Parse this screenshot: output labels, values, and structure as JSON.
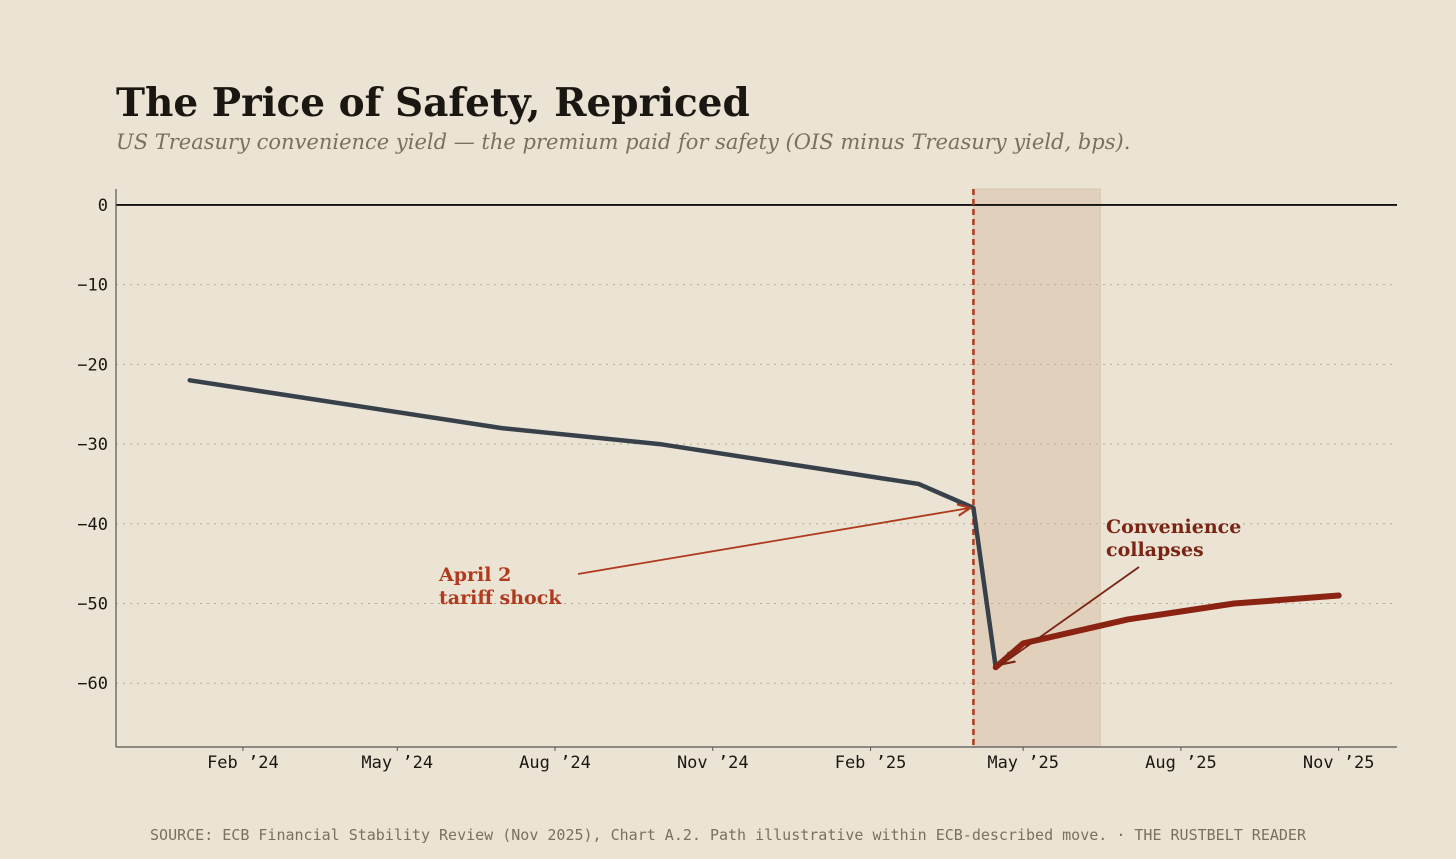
{
  "chart_data": {
    "type": "line",
    "title": "The Price of Safety, Repriced",
    "subtitle": "US Treasury convenience yield — the premium paid for safety (OIS minus Treasury yield, bps).",
    "x": [
      "2024-01-01",
      "2024-07-01",
      "2024-10-01",
      "2025-03-01",
      "2025-04-02",
      "2025-04-15",
      "2025-05-01",
      "2025-07-01",
      "2025-09-01",
      "2025-11-01"
    ],
    "series": [
      {
        "color": "#38414a",
        "values": [
          -22,
          -28,
          -30,
          -35,
          -38,
          -58,
          null,
          null,
          null,
          null
        ]
      },
      {
        "color": "#8b2312",
        "values": [
          null,
          null,
          null,
          null,
          null,
          -58,
          -55,
          -52,
          -50,
          -49
        ]
      }
    ],
    "xlim": [
      "2023-11-19",
      "2025-12-05"
    ],
    "xticks": [
      {
        "value": "2024-02-01",
        "label": "Feb ’24"
      },
      {
        "value": "2024-05-01",
        "label": "May ’24"
      },
      {
        "value": "2024-08-01",
        "label": "Aug ’24"
      },
      {
        "value": "2024-11-01",
        "label": "Nov ’24"
      },
      {
        "value": "2025-02-01",
        "label": "Feb ’25"
      },
      {
        "value": "2025-05-01",
        "label": "May ’25"
      },
      {
        "value": "2025-08-01",
        "label": "Aug ’25"
      },
      {
        "value": "2025-11-01",
        "label": "Nov ’25"
      }
    ],
    "ylim": [
      -68,
      2
    ],
    "yticks": [
      0,
      {
        "value": -10,
        "label": "−10"
      },
      {
        "value": -20,
        "label": "−20"
      },
      {
        "value": -30,
        "label": "−30"
      },
      {
        "value": -40,
        "label": "−40"
      },
      {
        "value": -50,
        "label": "−50"
      },
      {
        "value": -60,
        "label": "−60"
      }
    ],
    "grid": true,
    "event_line": "2025-04-02",
    "shade": [
      "2025-04-02",
      "2025-06-15"
    ],
    "annotations": [
      {
        "lines": [
          "April 2",
          "tariff shock"
        ],
        "color": "#b03a1e"
      },
      {
        "lines": [
          "Convenience",
          "collapses"
        ],
        "color": "#7a2414"
      }
    ],
    "source": "SOURCE: ECB Financial Stability Review (Nov 2025), Chart A.2. Path illustrative within ECB-described move.  ·  THE RUSTBELT READER"
  }
}
